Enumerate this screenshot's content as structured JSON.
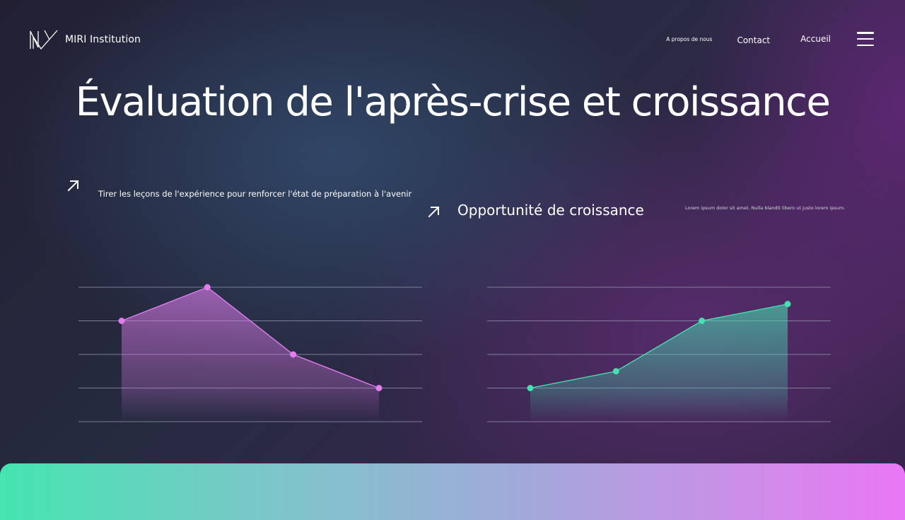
{
  "brand": {
    "name": "MIRI Institution"
  },
  "nav": {
    "about": "A propos de nous",
    "contact": "Contact",
    "home": "Accueil"
  },
  "page_title": "Évaluation de l'après-crise et croissance",
  "left_section": {
    "caption": "Tirer les leçons de l'expérience pour renforcer l'état de préparation à l'avenir"
  },
  "right_section": {
    "title": "Opportunité de croissance",
    "description": "Lorem ipsum dolor sit amet. Nulla blandit libero ut justo lorem ipsum."
  },
  "chart_data": [
    {
      "type": "area",
      "x": [
        1,
        2,
        3,
        4
      ],
      "values": [
        3,
        4,
        2,
        1
      ],
      "ylim": [
        0,
        4
      ],
      "gridlines": 5,
      "grid": true,
      "color": "#e37df0"
    },
    {
      "type": "area",
      "x": [
        1,
        2,
        3,
        4
      ],
      "values": [
        1,
        1.5,
        3,
        3.5
      ],
      "ylim": [
        0,
        4
      ],
      "gridlines": 5,
      "grid": true,
      "color": "#45e0b0"
    }
  ]
}
